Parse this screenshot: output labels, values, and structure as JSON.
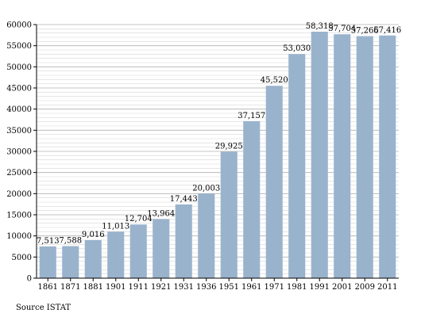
{
  "chart_data": {
    "type": "bar",
    "categories": [
      "1861",
      "1871",
      "1881",
      "1901",
      "1911",
      "1921",
      "1931",
      "1936",
      "1951",
      "1961",
      "1971",
      "1981",
      "1991",
      "2001",
      "2009",
      "2011"
    ],
    "values": [
      7513,
      7588,
      9016,
      11013,
      12704,
      13964,
      17443,
      20003,
      29925,
      37157,
      45520,
      53030,
      58318,
      57704,
      57266,
      57416
    ],
    "value_labels": [
      "7,513",
      "7,588",
      "9,016",
      "11,013",
      "12,704",
      "13,964",
      "17,443",
      "20,003",
      "29,925",
      "37,157",
      "45,520",
      "53,030",
      "58,318",
      "57,704",
      "57,266",
      "57,416"
    ],
    "ylim": [
      0,
      60000
    ],
    "yticks": [
      0,
      5000,
      10000,
      15000,
      20000,
      25000,
      30000,
      35000,
      40000,
      45000,
      50000,
      55000,
      60000
    ],
    "minor_grid_step": 1000,
    "grid": true,
    "bar_color": "#9ab3cd",
    "title": "",
    "xlabel": "",
    "ylabel": ""
  },
  "source_note": "Source ISTAT"
}
